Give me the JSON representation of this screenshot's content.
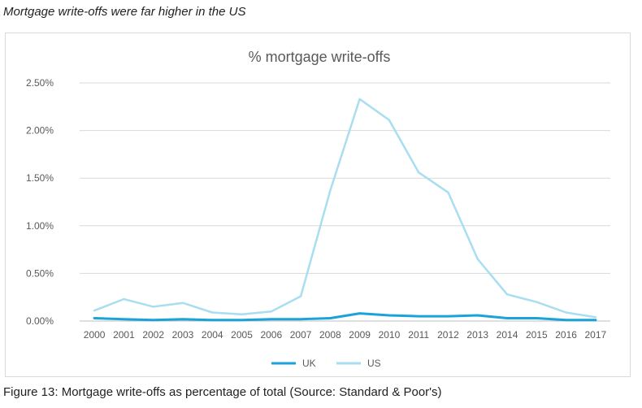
{
  "heading": "Mortgage write-offs were far higher in the US",
  "caption": "Figure 13: Mortgage write-offs as percentage of total (Source: Standard & Poor's)",
  "chart_data": {
    "type": "line",
    "title": "% mortgage write-offs",
    "xlabel": "",
    "ylabel": "",
    "x": [
      "2000",
      "2001",
      "2002",
      "2003",
      "2004",
      "2005",
      "2006",
      "2007",
      "2008",
      "2009",
      "2010",
      "2011",
      "2012",
      "2013",
      "2014",
      "2015",
      "2016",
      "2017"
    ],
    "y_ticks": [
      "0.00%",
      "0.50%",
      "1.00%",
      "1.50%",
      "2.00%",
      "2.50%"
    ],
    "ylim": [
      0,
      2.5
    ],
    "grid": true,
    "legend_position": "bottom",
    "series": [
      {
        "name": "UK",
        "color": "#1aa3d9",
        "values": [
          0.03,
          0.02,
          0.01,
          0.02,
          0.01,
          0.01,
          0.02,
          0.02,
          0.03,
          0.08,
          0.06,
          0.05,
          0.05,
          0.06,
          0.03,
          0.03,
          0.01,
          0.01
        ]
      },
      {
        "name": "US",
        "color": "#a8def0",
        "values": [
          0.11,
          0.23,
          0.15,
          0.19,
          0.09,
          0.07,
          0.1,
          0.26,
          1.37,
          2.33,
          2.11,
          1.56,
          1.35,
          0.65,
          0.28,
          0.2,
          0.09,
          0.04
        ]
      }
    ]
  }
}
